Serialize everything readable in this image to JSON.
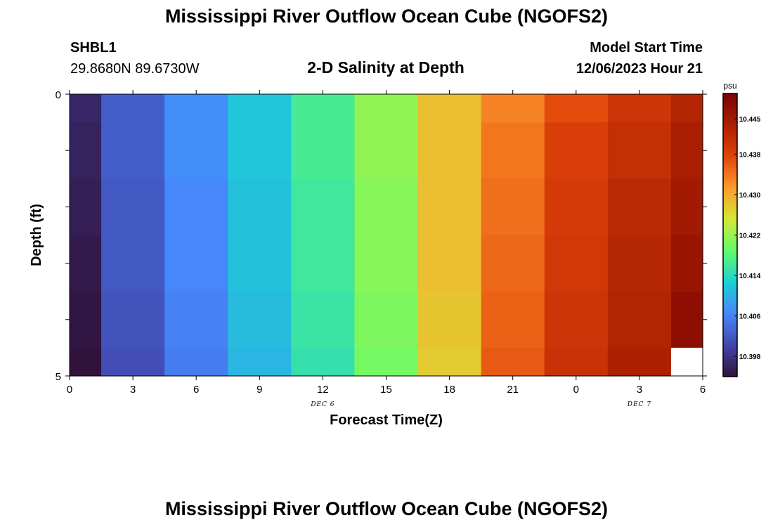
{
  "header": {
    "title": "Mississippi River Outflow Ocean Cube (NGOFS2)",
    "station_id": "SHBL1",
    "coords": "29.8680N  89.6730W",
    "subtitle": "2-D Salinity at Depth",
    "model_start_label": "Model Start Time",
    "model_start_value": "12/06/2023 Hour 21"
  },
  "footer": {
    "title": "Mississippi River Outflow Ocean Cube (NGOFS2)"
  },
  "chart_data": {
    "type": "heatmap",
    "title": "2-D Salinity at Depth",
    "xlabel": "Forecast Time(Z)",
    "ylabel": "Depth (ft)",
    "x_tick_labels": [
      "0",
      "3",
      "6",
      "9",
      "12",
      "15",
      "18",
      "21",
      "0",
      "3",
      "6"
    ],
    "x_hours": [
      0,
      3,
      6,
      9,
      12,
      15,
      18,
      21,
      24,
      27,
      30
    ],
    "x_range": [
      0,
      30
    ],
    "y_tick_labels": [
      "0",
      "5"
    ],
    "y_range": [
      0,
      5
    ],
    "date_labels": [
      {
        "text": "DEC 6",
        "at_hour": 12
      },
      {
        "text": "DEC 7",
        "at_hour": 27
      }
    ],
    "column_centers_hours": [
      0,
      3,
      6,
      9,
      12,
      15,
      18,
      21,
      24,
      27,
      30
    ],
    "row_centers_ft": [
      0,
      1,
      2,
      3,
      4,
      5
    ],
    "values": [
      [
        10.3965,
        10.4025,
        10.407,
        10.412,
        10.4165,
        10.4215,
        10.4285,
        10.433,
        10.437,
        10.44,
        10.443
      ],
      [
        10.396,
        10.4025,
        10.407,
        10.412,
        10.4165,
        10.4215,
        10.4285,
        10.434,
        10.4385,
        10.441,
        10.444
      ],
      [
        10.3955,
        10.402,
        10.4065,
        10.4115,
        10.416,
        10.421,
        10.4285,
        10.4345,
        10.439,
        10.442,
        10.445
      ],
      [
        10.395,
        10.402,
        10.4065,
        10.4115,
        10.416,
        10.421,
        10.4285,
        10.435,
        10.4395,
        10.4425,
        10.446
      ],
      [
        10.3945,
        10.4015,
        10.406,
        10.411,
        10.4155,
        10.4205,
        10.428,
        10.4355,
        10.44,
        10.443,
        10.4475
      ],
      [
        10.394,
        10.401,
        10.4055,
        10.4105,
        10.415,
        10.42,
        10.4275,
        10.436,
        10.4405,
        10.4435,
        null
      ]
    ],
    "colorbar": {
      "unit": "psu",
      "min": 10.394,
      "max": 10.45,
      "tick_values": [
        10.398,
        10.406,
        10.414,
        10.422,
        10.43,
        10.438,
        10.445
      ],
      "tick_labels": [
        "10.398",
        "10.406",
        "10.414",
        "10.422",
        "10.430",
        "10.438",
        "10.445"
      ]
    },
    "colormap": [
      "#30123b",
      "#4146ac",
      "#4686fb",
      "#1bcfd4",
      "#61fc6c",
      "#d2e935",
      "#fe9b2d",
      "#e1440b",
      "#ab1f01",
      "#7a0403"
    ]
  }
}
